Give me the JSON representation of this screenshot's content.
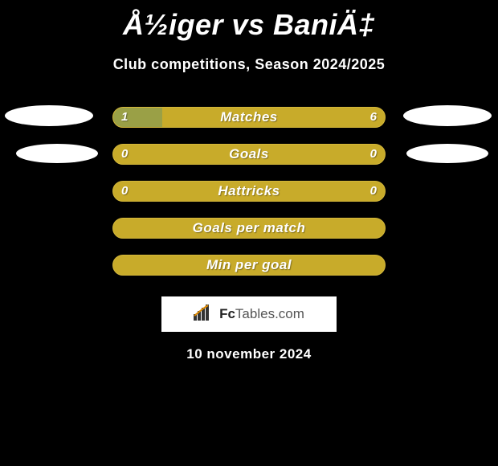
{
  "title": "Å½iger vs BaniÄ‡",
  "subtitle": "Club competitions, Season 2024/2025",
  "date": "10 november 2024",
  "bar_border_color": "#d4b73a",
  "bar_bg_color": "#c8ab2a",
  "bar_alt_fill_color": "#9aa046",
  "background_color": "#000000",
  "rows": [
    {
      "label": "Matches",
      "left_value": "1",
      "right_value": "6",
      "left_fill_pct": 18,
      "left_fill_color": "#9aa046",
      "show_left_oval": true,
      "show_right_oval": true,
      "left_oval_class": "",
      "right_oval_class": ""
    },
    {
      "label": "Goals",
      "left_value": "0",
      "right_value": "0",
      "left_fill_pct": 0,
      "left_fill_color": "#9aa046",
      "show_left_oval": true,
      "show_right_oval": true,
      "left_oval_class": "s2",
      "right_oval_class": "s2r"
    },
    {
      "label": "Hattricks",
      "left_value": "0",
      "right_value": "0",
      "left_fill_pct": 0,
      "left_fill_color": "#9aa046",
      "show_left_oval": false,
      "show_right_oval": false
    },
    {
      "label": "Goals per match",
      "left_value": "",
      "right_value": "",
      "left_fill_pct": 0,
      "left_fill_color": "#9aa046",
      "show_left_oval": false,
      "show_right_oval": false
    },
    {
      "label": "Min per goal",
      "left_value": "",
      "right_value": "",
      "left_fill_pct": 0,
      "left_fill_color": "#9aa046",
      "show_left_oval": false,
      "show_right_oval": false
    }
  ],
  "logo": {
    "icon_name": "bar-chart-icon",
    "text_bold": "Fc",
    "text_rest": "Tables.com"
  }
}
